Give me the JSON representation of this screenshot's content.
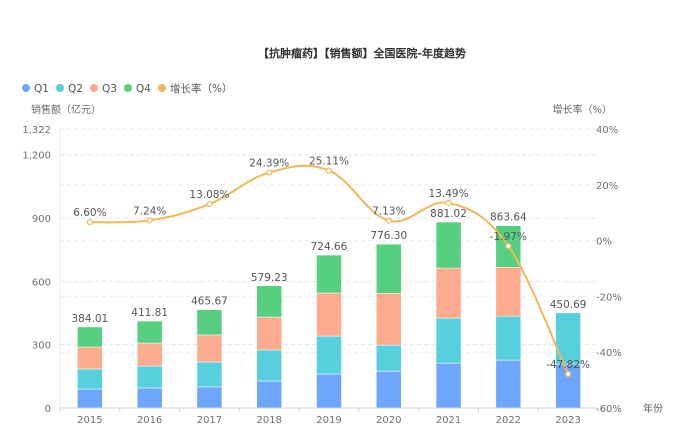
{
  "chart_data": {
    "type": "bar",
    "title": "【抗肿瘤药】【销售额】全国医院-年度趋势",
    "xlabel": "年份",
    "ylabel": "销售额（亿元）",
    "y2label": "增长率（%）",
    "categories": [
      "2015",
      "2016",
      "2017",
      "2018",
      "2019",
      "2020",
      "2021",
      "2022",
      "2023"
    ],
    "ylim": [
      0,
      1322
    ],
    "y_ticks": [
      "0",
      "300",
      "600",
      "900",
      "1,200",
      "1,322"
    ],
    "y_tick_values": [
      0,
      300,
      600,
      900,
      1200,
      1322
    ],
    "y2lim": [
      -60,
      40
    ],
    "y2_ticks": [
      "-60%",
      "-40%",
      "-20%",
      "0%",
      "20%",
      "40%"
    ],
    "y2_tick_values": [
      -60,
      -40,
      -20,
      0,
      20,
      40
    ],
    "legend_position": "top-left",
    "grid": true,
    "series": [
      {
        "name": "Q1",
        "type": "bar",
        "stack": "total",
        "color": "#6ea6fb",
        "values": [
          90,
          95,
          100,
          128,
          161,
          175,
          213,
          227,
          208
        ]
      },
      {
        "name": "Q2",
        "type": "bar",
        "stack": "total",
        "color": "#57cfdd",
        "values": [
          95,
          104,
          118,
          147,
          180,
          123,
          213,
          208,
          242.69
        ]
      },
      {
        "name": "Q3",
        "type": "bar",
        "stack": "total",
        "color": "#fdab8e",
        "values": [
          104,
          109,
          128,
          156,
          204,
          246,
          237,
          232,
          0
        ]
      },
      {
        "name": "Q4",
        "type": "bar",
        "stack": "total",
        "color": "#56cf80",
        "values": [
          95.01,
          103.81,
          119.67,
          148.23,
          179.66,
          232.3,
          218.02,
          196.64,
          0
        ]
      },
      {
        "name": "增长率（%）",
        "type": "line",
        "axis": "right",
        "color": "#f0b85a",
        "values": [
          6.6,
          7.24,
          13.08,
          24.39,
          25.11,
          7.13,
          13.49,
          -1.97,
          -47.82
        ]
      }
    ],
    "totals": [
      384.01,
      411.81,
      465.67,
      579.23,
      724.66,
      776.3,
      881.02,
      863.64,
      450.69
    ],
    "total_labels": [
      "384.01",
      "411.81",
      "465.67",
      "579.23",
      "724.66",
      "776.30",
      "881.02",
      "863.64",
      "450.69"
    ],
    "rate_labels": [
      "6.60%",
      "7.24%",
      "13.08%",
      "24.39%",
      "25.11%",
      "7.13%",
      "13.49%",
      "-1.97%",
      "-47.82%"
    ]
  }
}
